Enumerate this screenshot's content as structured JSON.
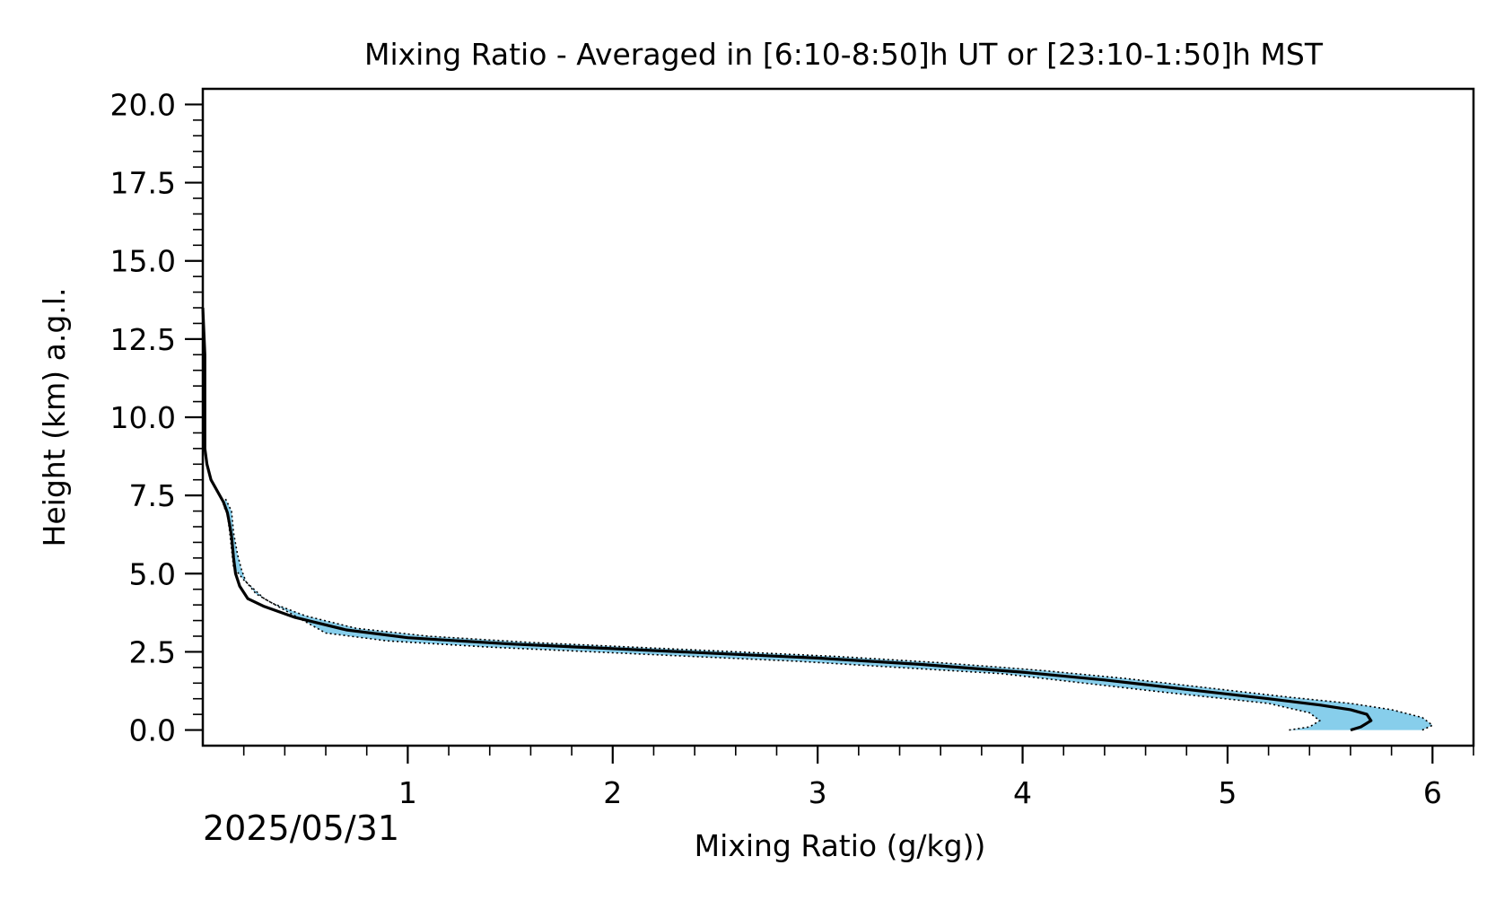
{
  "chart_data": {
    "type": "line",
    "title": "Mixing Ratio - Averaged in [6:10-8:50]h UT or [23:10-1:50]h MST",
    "xlabel": "Mixing Ratio (g/kg))",
    "ylabel": "Height (km) a.g.l.",
    "date_text": "2025/05/31",
    "xlim": [
      0,
      6.2
    ],
    "ylim": [
      -0.5,
      20.5
    ],
    "x_ticks": [
      1,
      2,
      3,
      4,
      5,
      6
    ],
    "x_tick_labels": [
      "1",
      "2",
      "3",
      "4",
      "5",
      "6"
    ],
    "y_ticks": [
      0,
      2.5,
      5,
      7.5,
      10,
      12.5,
      15,
      17.5,
      20
    ],
    "y_tick_labels": [
      "0.0",
      "2.5",
      "5.0",
      "7.5",
      "10.0",
      "12.5",
      "15.0",
      "17.5",
      "20.0"
    ],
    "grid": false,
    "colors": {
      "mean": "#000000",
      "band": "#87ceeb",
      "bounds": "#000000"
    },
    "series": [
      {
        "role": "mean",
        "x": [
          5.6,
          5.65,
          5.7,
          5.68,
          5.6,
          5.45,
          5.2,
          4.8,
          4.4,
          4.0,
          3.5,
          3.0,
          2.5,
          2.0,
          1.5,
          1.0,
          0.7,
          0.45,
          0.3,
          0.22,
          0.18,
          0.16,
          0.15,
          0.14,
          0.13,
          0.12,
          0.1,
          0.04,
          0.02,
          0.01,
          0.01,
          0.01,
          0.0
        ],
        "y": [
          0.0,
          0.1,
          0.3,
          0.5,
          0.65,
          0.8,
          1.0,
          1.3,
          1.6,
          1.85,
          2.1,
          2.3,
          2.45,
          2.6,
          2.75,
          2.95,
          3.2,
          3.6,
          3.95,
          4.2,
          4.6,
          5.0,
          5.5,
          6.2,
          6.6,
          6.95,
          7.3,
          8.0,
          8.5,
          9.0,
          10.0,
          12.0,
          13.5
        ]
      },
      {
        "role": "upper",
        "x": [
          5.95,
          6.0,
          5.95,
          5.8,
          5.6,
          5.3,
          4.9,
          4.5,
          4.1,
          3.6,
          3.1,
          2.6,
          2.1,
          1.6,
          1.1,
          0.75,
          0.5,
          0.34,
          0.26,
          0.21,
          0.19,
          0.17,
          0.15,
          0.14,
          0.11
        ],
        "y": [
          0.0,
          0.15,
          0.4,
          0.65,
          0.85,
          1.05,
          1.35,
          1.65,
          1.9,
          2.15,
          2.35,
          2.5,
          2.65,
          2.8,
          3.0,
          3.25,
          3.65,
          4.05,
          4.35,
          4.75,
          5.1,
          5.6,
          6.3,
          7.0,
          7.4
        ]
      },
      {
        "role": "lower",
        "x": [
          5.3,
          5.4,
          5.45,
          5.4,
          5.2,
          4.7,
          4.3,
          3.9,
          3.4,
          2.9,
          2.4,
          1.9,
          1.4,
          0.9,
          0.6,
          0.3,
          0.2,
          0.15,
          0.14,
          0.13,
          0.12,
          0.1
        ],
        "y": [
          0.0,
          0.1,
          0.3,
          0.55,
          0.85,
          1.2,
          1.5,
          1.8,
          2.0,
          2.2,
          2.35,
          2.5,
          2.65,
          2.85,
          3.1,
          4.2,
          4.8,
          5.2,
          5.8,
          6.4,
          6.9,
          7.2
        ]
      }
    ]
  }
}
